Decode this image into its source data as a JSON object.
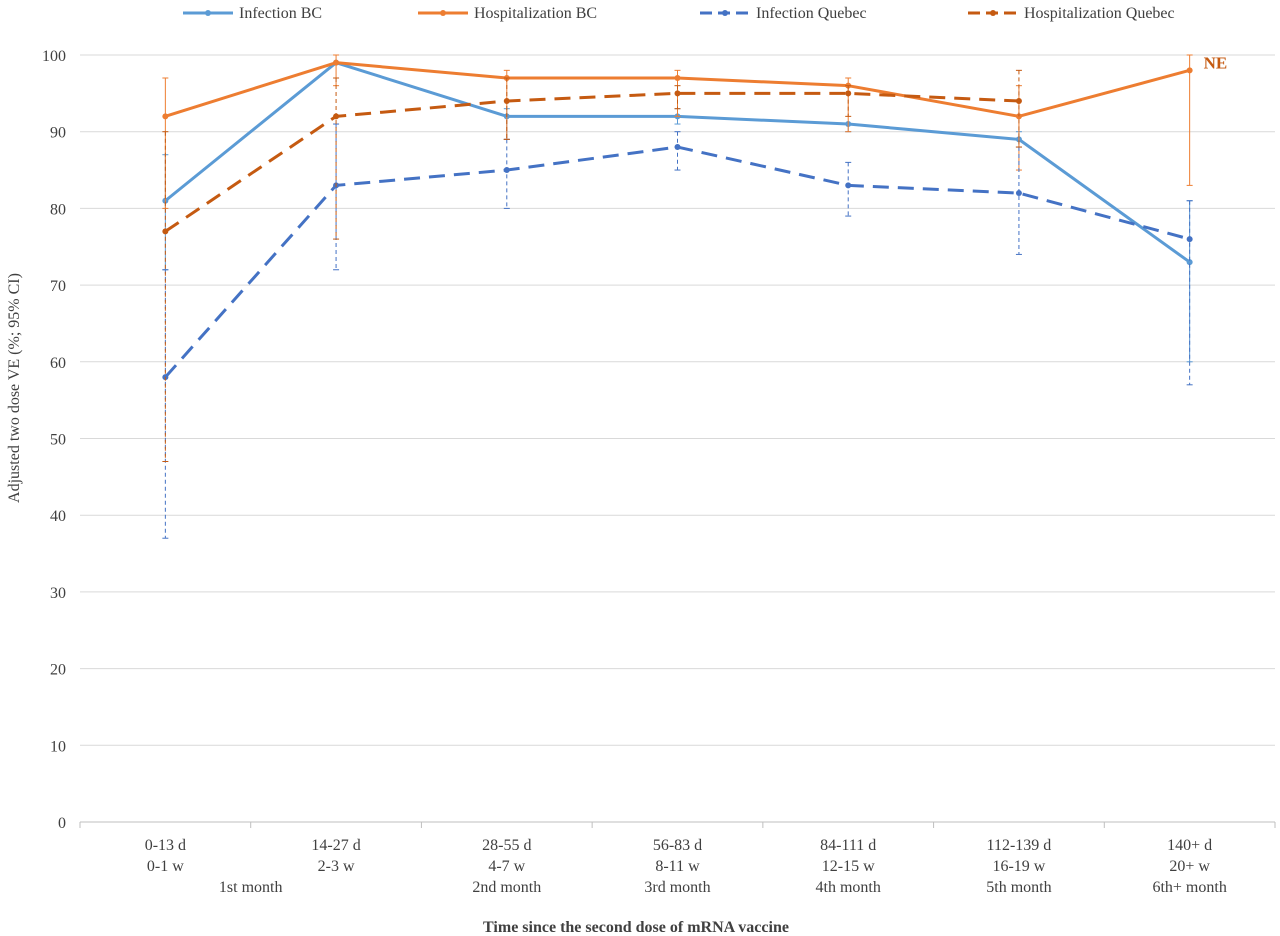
{
  "chart_data": {
    "type": "line",
    "title": "",
    "xlabel": "Time since the second dose of mRNA vaccine",
    "ylabel": "Adjusted two dose VE (%; 95% CI)",
    "ylim": [
      0,
      100
    ],
    "yticks": [
      0,
      10,
      20,
      30,
      40,
      50,
      60,
      70,
      80,
      90,
      100
    ],
    "grid": "horizontal",
    "legend_position": "top",
    "categories": [
      [
        "0-13 d",
        "0-1 w",
        ""
      ],
      [
        "14-27 d",
        "2-3 w",
        ""
      ],
      [
        "28-55 d",
        "4-7 w",
        "2nd month"
      ],
      [
        "56-83 d",
        "8-11 w",
        "3rd month"
      ],
      [
        "84-111 d",
        "12-15 w",
        "4th month"
      ],
      [
        "112-139 d",
        "16-19 w",
        "5th month"
      ],
      [
        "140+ d",
        "20+ w",
        "6th+ month"
      ]
    ],
    "group_labels": [
      {
        "label": "1st month",
        "span": [
          0,
          1
        ]
      }
    ],
    "series": [
      {
        "name": "Infection BC",
        "color": "#5b9bd5",
        "dash": "solid",
        "values": [
          81,
          99,
          92,
          92,
          91,
          89,
          73
        ],
        "ci_low": [
          72,
          99,
          89,
          91,
          90,
          88,
          60
        ],
        "ci_high": [
          87,
          99,
          93,
          93,
          91,
          90,
          81
        ]
      },
      {
        "name": "Hospitalization BC",
        "color": "#ed7d31",
        "dash": "solid",
        "values": [
          92,
          99,
          97,
          97,
          96,
          92,
          98
        ],
        "ci_low": [
          80,
          96,
          89,
          92,
          90,
          85,
          83
        ],
        "ci_high": [
          97,
          100,
          98,
          98,
          97,
          96,
          100
        ]
      },
      {
        "name": "Infection Quebec",
        "color": "#4472c4",
        "dash": "dashed",
        "values": [
          58,
          83,
          85,
          88,
          83,
          82,
          76
        ],
        "ci_low": [
          37,
          72,
          80,
          85,
          79,
          74,
          57
        ],
        "ci_high": [
          72,
          91,
          89,
          90,
          86,
          88,
          81
        ]
      },
      {
        "name": "Hospitalization Quebec",
        "color": "#c55a11",
        "dash": "dashed",
        "values": [
          77,
          92,
          94,
          95,
          95,
          94,
          null
        ],
        "ci_low": [
          47,
          76,
          89,
          93,
          92,
          88,
          null
        ],
        "ci_high": [
          90,
          97,
          97,
          96,
          96,
          98,
          null
        ]
      }
    ],
    "annotations": [
      {
        "text": "NE",
        "category_index": 6,
        "y": 98,
        "color": "#c55a11"
      }
    ]
  }
}
